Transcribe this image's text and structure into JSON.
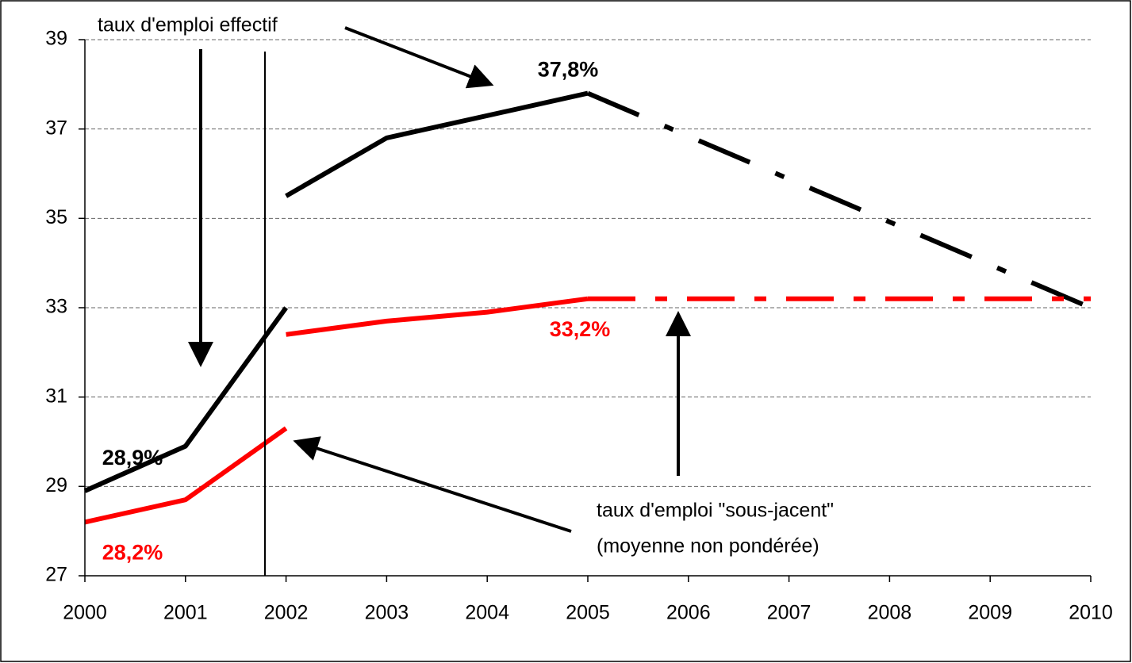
{
  "chart_data": {
    "type": "line",
    "xlim": [
      2000,
      2010
    ],
    "xticks": [
      2000,
      2001,
      2002,
      2003,
      2004,
      2005,
      2006,
      2007,
      2008,
      2009,
      2010
    ],
    "ylim": [
      27,
      39
    ],
    "yticks": [
      27,
      29,
      31,
      33,
      35,
      37,
      39
    ],
    "grid": true,
    "series": [
      {
        "color": "#000000",
        "dashed": false,
        "x": [
          2000,
          2001,
          2002
        ],
        "values": [
          28.9,
          29.9,
          33.0
        ],
        "value_labels": [
          "28,9%",
          null,
          null
        ]
      },
      {
        "color": "#000000",
        "dashed": false,
        "x": [
          2002,
          2003,
          2004,
          2005
        ],
        "values": [
          35.5,
          36.8,
          37.3,
          37.8
        ],
        "value_labels": [
          null,
          null,
          null,
          "37,8%"
        ]
      },
      {
        "color": "#000000",
        "dashed": true,
        "x": [
          2005,
          2010
        ],
        "values": [
          37.8,
          33.0
        ]
      },
      {
        "color": "#ff0000",
        "dashed": false,
        "x": [
          2000,
          2001,
          2002
        ],
        "values": [
          28.2,
          28.7,
          30.3
        ],
        "value_labels": [
          "28,2%",
          null,
          null
        ]
      },
      {
        "color": "#ff0000",
        "dashed": false,
        "x": [
          2002,
          2003,
          2004,
          2005
        ],
        "values": [
          32.4,
          32.7,
          32.9,
          33.2
        ],
        "value_labels": [
          null,
          null,
          null,
          "33,2%"
        ]
      },
      {
        "color": "#ff0000",
        "dashed": true,
        "x": [
          2005,
          2010
        ],
        "values": [
          33.2,
          33.2
        ]
      }
    ],
    "annotations": [
      "taux d'emploi effectif",
      "taux d'emploi \"sous-jacent\"",
      "(moyenne non pondérée)"
    ]
  }
}
